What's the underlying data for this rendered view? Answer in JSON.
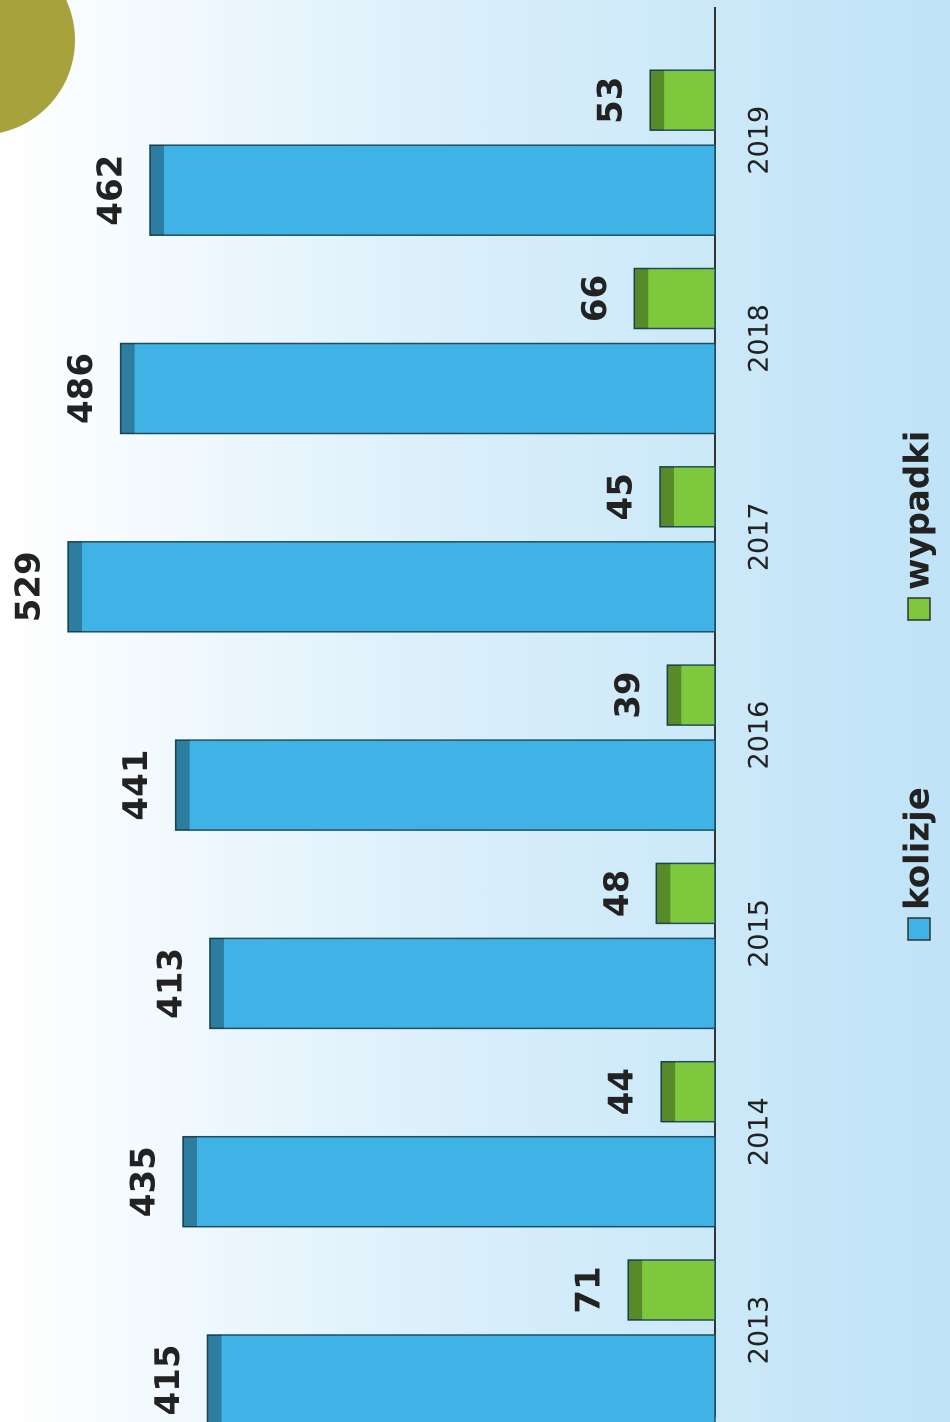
{
  "chart_data": {
    "type": "bar",
    "categories": [
      "2013",
      "2014",
      "2015",
      "2016",
      "2017",
      "2018",
      "2019"
    ],
    "series": [
      {
        "name": "kolizje",
        "color": "#3fb3e6",
        "values": [
          415,
          435,
          413,
          441,
          529,
          486,
          462
        ]
      },
      {
        "name": "wypadki",
        "color": "#7dc83c",
        "values": [
          71,
          44,
          48,
          39,
          45,
          66,
          53
        ]
      }
    ]
  }
}
